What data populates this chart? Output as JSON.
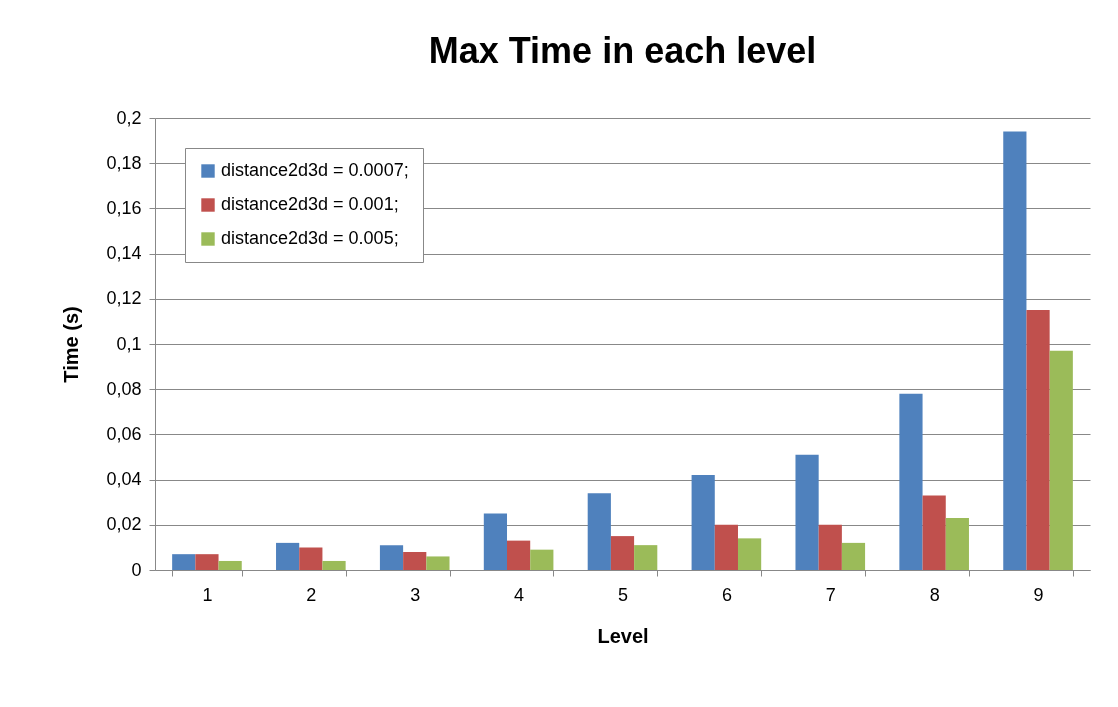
{
  "chart_data": {
    "type": "bar",
    "title": "Max Time in each level",
    "xlabel": "Level",
    "ylabel": "Time (s)",
    "categories": [
      "1",
      "2",
      "3",
      "4",
      "5",
      "6",
      "7",
      "8",
      "9"
    ],
    "series": [
      {
        "name": "distance2d3d = 0.0007;",
        "color": "#4f81bd",
        "values": [
          0.007,
          0.012,
          0.011,
          0.025,
          0.034,
          0.042,
          0.051,
          0.078,
          0.194
        ]
      },
      {
        "name": "distance2d3d = 0.001;",
        "color": "#c0504d",
        "values": [
          0.007,
          0.01,
          0.008,
          0.013,
          0.015,
          0.02,
          0.02,
          0.033,
          0.115
        ]
      },
      {
        "name": "distance2d3d = 0.005;",
        "color": "#9bbb59",
        "values": [
          0.004,
          0.004,
          0.006,
          0.009,
          0.011,
          0.014,
          0.012,
          0.023,
          0.097
        ]
      }
    ],
    "ylim": [
      0,
      0.2
    ],
    "yticks": [
      0,
      {
        "value": 0.02,
        "label": "0,02"
      },
      {
        "value": 0.04,
        "label": "0,04"
      },
      {
        "value": 0.06,
        "label": "0,06"
      },
      {
        "value": 0.08,
        "label": "0,08"
      },
      {
        "value": 0.1,
        "label": "0,1"
      },
      {
        "value": 0.12,
        "label": "0,12"
      },
      {
        "value": 0.14,
        "label": "0,14"
      },
      {
        "value": 0.16,
        "label": "0,16"
      },
      {
        "value": 0.18,
        "label": "0,18"
      },
      {
        "value": 0.2,
        "label": "0,2"
      }
    ],
    "grid": "y",
    "legend": "top left"
  }
}
